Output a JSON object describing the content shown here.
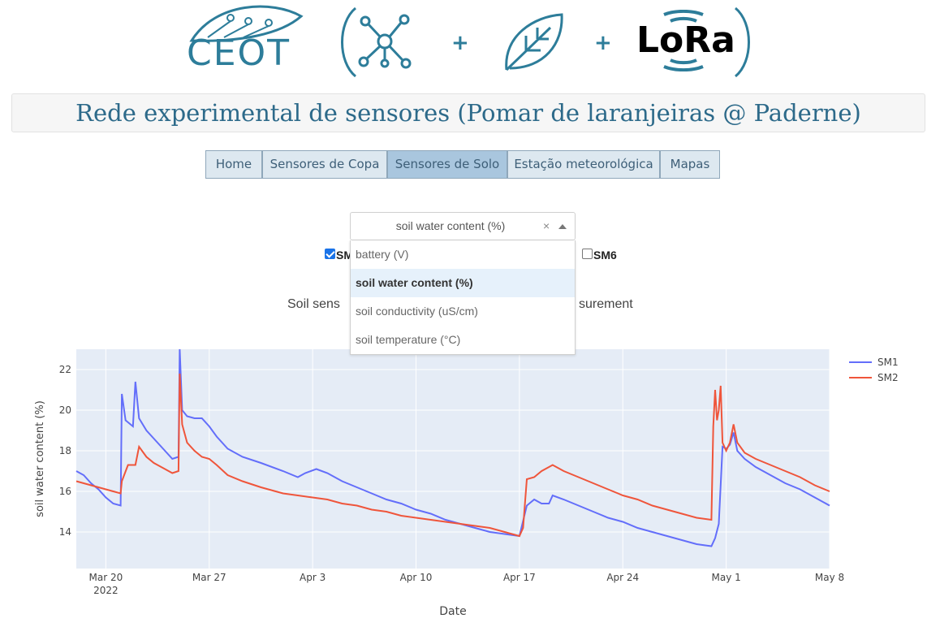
{
  "header": {
    "logo_text": "CEOT",
    "plus_sign": "+",
    "lora_text": "LoRa",
    "icons": [
      "ceot-leaf-logo",
      "network-icon",
      "leaf-icon",
      "lora-signal-icon"
    ]
  },
  "title": "Rede experimental de sensores (Pomar de laranjeiras @ Paderne)",
  "nav": {
    "items": [
      {
        "label": "Home"
      },
      {
        "label": "Sensores de Copa"
      },
      {
        "label": "Sensores de Solo",
        "active": true
      },
      {
        "label": "Estação meteorológica"
      },
      {
        "label": "Mapas"
      }
    ]
  },
  "dropdown": {
    "value": "soil water content (%)",
    "clear": "×",
    "options": [
      "battery (V)",
      "soil water content (%)",
      "soil conductivity (uS/cm)",
      "soil temperature (°C)"
    ],
    "selected_index": 1
  },
  "sensors": {
    "visible_labels": [
      "SM",
      "SM6"
    ],
    "first_checked": true,
    "last_checked": false
  },
  "chart": {
    "title_visible_left": "Soil sens",
    "title_visible_right": "surement"
  },
  "colors": {
    "accent": "#2d7d9a",
    "sm1": "#636efa",
    "sm2": "#ef553b",
    "plot_bg": "#e5ecf6"
  },
  "chart_data": {
    "type": "line",
    "xlabel": "Date",
    "ylabel": "soil water content (%)",
    "x_ticks": [
      "Mar 20\n2022",
      "Mar 27",
      "Apr 3",
      "Apr 10",
      "Apr 17",
      "Apr 24",
      "May 1",
      "May 8"
    ],
    "y_ticks": [
      14,
      16,
      18,
      20,
      22
    ],
    "xlim": [
      "2022-03-18",
      "2022-05-08"
    ],
    "ylim": [
      12.2,
      23.0
    ],
    "legend": "top-right",
    "grid": true,
    "series": [
      {
        "name": "SM1",
        "color": "#636efa",
        "points": [
          [
            "2022-03-18T00",
            17.0
          ],
          [
            "2022-03-18T12",
            16.8
          ],
          [
            "2022-03-19T00",
            16.4
          ],
          [
            "2022-03-19T12",
            16.1
          ],
          [
            "2022-03-20T00",
            15.7
          ],
          [
            "2022-03-20T12",
            15.4
          ],
          [
            "2022-03-21T00",
            15.3
          ],
          [
            "2022-03-21T02",
            20.8
          ],
          [
            "2022-03-21T08",
            19.5
          ],
          [
            "2022-03-21T20",
            19.2
          ],
          [
            "2022-03-22T00",
            21.4
          ],
          [
            "2022-03-22T06",
            19.6
          ],
          [
            "2022-03-22T18",
            19.0
          ],
          [
            "2022-03-23T06",
            18.6
          ],
          [
            "2022-03-24T00",
            18.0
          ],
          [
            "2022-03-24T12",
            17.6
          ],
          [
            "2022-03-24T22",
            17.7
          ],
          [
            "2022-03-25T00",
            23.0
          ],
          [
            "2022-03-25T04",
            20.0
          ],
          [
            "2022-03-25T12",
            19.7
          ],
          [
            "2022-03-26T00",
            19.6
          ],
          [
            "2022-03-26T12",
            19.6
          ],
          [
            "2022-03-27T00",
            19.2
          ],
          [
            "2022-03-27T12",
            18.7
          ],
          [
            "2022-03-28T06",
            18.1
          ],
          [
            "2022-03-29T06",
            17.7
          ],
          [
            "2022-03-30T12",
            17.4
          ],
          [
            "2022-04-01T00",
            17.0
          ],
          [
            "2022-04-02T00",
            16.7
          ],
          [
            "2022-04-02T12",
            16.9
          ],
          [
            "2022-04-03T06",
            17.1
          ],
          [
            "2022-04-04T00",
            16.9
          ],
          [
            "2022-04-05T00",
            16.5
          ],
          [
            "2022-04-06T00",
            16.2
          ],
          [
            "2022-04-07T00",
            15.9
          ],
          [
            "2022-04-08T00",
            15.6
          ],
          [
            "2022-04-09T00",
            15.4
          ],
          [
            "2022-04-10T00",
            15.1
          ],
          [
            "2022-04-11T00",
            14.9
          ],
          [
            "2022-04-12T00",
            14.6
          ],
          [
            "2022-04-13T00",
            14.4
          ],
          [
            "2022-04-14T00",
            14.2
          ],
          [
            "2022-04-15T00",
            14.0
          ],
          [
            "2022-04-16T00",
            13.9
          ],
          [
            "2022-04-17T00",
            13.8
          ],
          [
            "2022-04-17T12",
            15.3
          ],
          [
            "2022-04-18T00",
            15.6
          ],
          [
            "2022-04-18T12",
            15.4
          ],
          [
            "2022-04-19T00",
            15.4
          ],
          [
            "2022-04-19T06",
            15.8
          ],
          [
            "2022-04-20T00",
            15.6
          ],
          [
            "2022-04-21T00",
            15.3
          ],
          [
            "2022-04-22T00",
            15.0
          ],
          [
            "2022-04-23T00",
            14.7
          ],
          [
            "2022-04-24T00",
            14.5
          ],
          [
            "2022-04-25T00",
            14.2
          ],
          [
            "2022-04-26T00",
            14.0
          ],
          [
            "2022-04-27T00",
            13.8
          ],
          [
            "2022-04-28T00",
            13.6
          ],
          [
            "2022-04-29T00",
            13.4
          ],
          [
            "2022-04-30T00",
            13.3
          ],
          [
            "2022-04-30T06",
            13.7
          ],
          [
            "2022-04-30T12",
            14.4
          ],
          [
            "2022-04-30T18",
            18.2
          ],
          [
            "2022-05-01T00",
            18.1
          ],
          [
            "2022-05-01T06",
            18.3
          ],
          [
            "2022-05-01T12",
            18.9
          ],
          [
            "2022-05-01T18",
            18.0
          ],
          [
            "2022-05-02T06",
            17.6
          ],
          [
            "2022-05-03T00",
            17.2
          ],
          [
            "2022-05-04T00",
            16.8
          ],
          [
            "2022-05-05T00",
            16.4
          ],
          [
            "2022-05-06T00",
            16.1
          ],
          [
            "2022-05-07T00",
            15.7
          ],
          [
            "2022-05-08T00",
            15.3
          ]
        ]
      },
      {
        "name": "SM2",
        "color": "#ef553b",
        "points": [
          [
            "2022-03-18T00",
            16.5
          ],
          [
            "2022-03-18T12",
            16.4
          ],
          [
            "2022-03-19T00",
            16.3
          ],
          [
            "2022-03-19T12",
            16.2
          ],
          [
            "2022-03-20T00",
            16.1
          ],
          [
            "2022-03-20T12",
            16.0
          ],
          [
            "2022-03-21T00",
            15.9
          ],
          [
            "2022-03-21T02",
            16.5
          ],
          [
            "2022-03-21T12",
            17.3
          ],
          [
            "2022-03-22T00",
            17.3
          ],
          [
            "2022-03-22T06",
            18.2
          ],
          [
            "2022-03-22T18",
            17.7
          ],
          [
            "2022-03-23T06",
            17.4
          ],
          [
            "2022-03-24T00",
            17.1
          ],
          [
            "2022-03-24T12",
            16.9
          ],
          [
            "2022-03-24T22",
            17.0
          ],
          [
            "2022-03-25T00",
            21.8
          ],
          [
            "2022-03-25T04",
            19.3
          ],
          [
            "2022-03-25T12",
            18.4
          ],
          [
            "2022-03-26T00",
            18.0
          ],
          [
            "2022-03-26T12",
            17.7
          ],
          [
            "2022-03-27T00",
            17.6
          ],
          [
            "2022-03-27T12",
            17.3
          ],
          [
            "2022-03-28T06",
            16.8
          ],
          [
            "2022-03-29T06",
            16.5
          ],
          [
            "2022-03-30T12",
            16.2
          ],
          [
            "2022-04-01T00",
            15.9
          ],
          [
            "2022-04-02T00",
            15.8
          ],
          [
            "2022-04-03T00",
            15.7
          ],
          [
            "2022-04-04T00",
            15.6
          ],
          [
            "2022-04-05T00",
            15.4
          ],
          [
            "2022-04-06T00",
            15.3
          ],
          [
            "2022-04-07T00",
            15.1
          ],
          [
            "2022-04-08T00",
            15.0
          ],
          [
            "2022-04-09T00",
            14.8
          ],
          [
            "2022-04-10T00",
            14.7
          ],
          [
            "2022-04-11T00",
            14.6
          ],
          [
            "2022-04-12T00",
            14.5
          ],
          [
            "2022-04-13T00",
            14.4
          ],
          [
            "2022-04-14T00",
            14.3
          ],
          [
            "2022-04-15T00",
            14.2
          ],
          [
            "2022-04-16T00",
            14.0
          ],
          [
            "2022-04-17T00",
            13.8
          ],
          [
            "2022-04-17T06",
            14.2
          ],
          [
            "2022-04-17T12",
            16.6
          ],
          [
            "2022-04-18T00",
            16.7
          ],
          [
            "2022-04-18T12",
            17.0
          ],
          [
            "2022-04-19T00",
            17.2
          ],
          [
            "2022-04-19T06",
            17.3
          ],
          [
            "2022-04-20T00",
            17.0
          ],
          [
            "2022-04-21T00",
            16.7
          ],
          [
            "2022-04-22T00",
            16.4
          ],
          [
            "2022-04-23T00",
            16.1
          ],
          [
            "2022-04-24T00",
            15.8
          ],
          [
            "2022-04-25T00",
            15.6
          ],
          [
            "2022-04-26T00",
            15.3
          ],
          [
            "2022-04-27T00",
            15.1
          ],
          [
            "2022-04-28T00",
            14.9
          ],
          [
            "2022-04-29T00",
            14.7
          ],
          [
            "2022-04-30T00",
            14.6
          ],
          [
            "2022-04-30T03",
            19.2
          ],
          [
            "2022-04-30T06",
            21.0
          ],
          [
            "2022-04-30T09",
            19.5
          ],
          [
            "2022-04-30T12",
            20.0
          ],
          [
            "2022-04-30T15",
            21.2
          ],
          [
            "2022-04-30T18",
            18.4
          ],
          [
            "2022-05-01T00",
            18.0
          ],
          [
            "2022-05-01T06",
            18.4
          ],
          [
            "2022-05-01T12",
            19.3
          ],
          [
            "2022-05-01T18",
            18.4
          ],
          [
            "2022-05-02T06",
            17.9
          ],
          [
            "2022-05-03T00",
            17.6
          ],
          [
            "2022-05-04T00",
            17.3
          ],
          [
            "2022-05-05T00",
            17.0
          ],
          [
            "2022-05-06T00",
            16.7
          ],
          [
            "2022-05-07T00",
            16.3
          ],
          [
            "2022-05-08T00",
            16.0
          ]
        ]
      }
    ]
  }
}
